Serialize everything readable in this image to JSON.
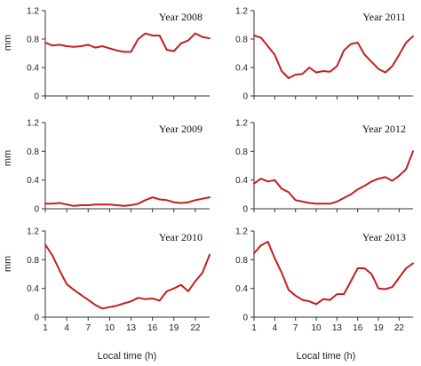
{
  "chart_data": {
    "type": "line",
    "ylabel": "mm",
    "xlabel": "Local time (h)",
    "x": [
      1,
      2,
      3,
      4,
      5,
      6,
      7,
      8,
      9,
      10,
      11,
      12,
      13,
      14,
      15,
      16,
      17,
      18,
      19,
      20,
      21,
      22,
      23,
      24
    ],
    "xticks": [
      1,
      4,
      7,
      10,
      13,
      16,
      19,
      22
    ],
    "ylim": [
      0,
      1.2
    ],
    "yticks": [
      "0",
      "0.4",
      "0.8",
      "1.2"
    ],
    "xlim": [
      1,
      24
    ],
    "line_color": "#c41e1e",
    "panels": [
      {
        "title": "Year 2008",
        "values": [
          0.75,
          0.71,
          0.72,
          0.7,
          0.69,
          0.7,
          0.72,
          0.68,
          0.7,
          0.67,
          0.64,
          0.62,
          0.62,
          0.8,
          0.88,
          0.85,
          0.85,
          0.65,
          0.63,
          0.74,
          0.78,
          0.88,
          0.83,
          0.81
        ]
      },
      {
        "title": "Year 2011",
        "values": [
          0.85,
          0.82,
          0.7,
          0.58,
          0.35,
          0.25,
          0.3,
          0.31,
          0.4,
          0.33,
          0.35,
          0.34,
          0.42,
          0.64,
          0.73,
          0.75,
          0.58,
          0.48,
          0.38,
          0.33,
          0.42,
          0.58,
          0.75,
          0.84
        ]
      },
      {
        "title": "Year 2009",
        "values": [
          0.07,
          0.07,
          0.08,
          0.06,
          0.04,
          0.05,
          0.05,
          0.06,
          0.06,
          0.06,
          0.05,
          0.04,
          0.05,
          0.07,
          0.12,
          0.16,
          0.13,
          0.12,
          0.09,
          0.08,
          0.09,
          0.12,
          0.14,
          0.16
        ]
      },
      {
        "title": "Year 2012",
        "values": [
          0.35,
          0.42,
          0.38,
          0.4,
          0.28,
          0.23,
          0.12,
          0.1,
          0.08,
          0.07,
          0.07,
          0.07,
          0.1,
          0.15,
          0.2,
          0.27,
          0.32,
          0.38,
          0.42,
          0.44,
          0.39,
          0.46,
          0.55,
          0.8
        ]
      },
      {
        "title": "Year 2010",
        "values": [
          1.01,
          0.86,
          0.65,
          0.46,
          0.38,
          0.31,
          0.24,
          0.17,
          0.12,
          0.14,
          0.16,
          0.19,
          0.22,
          0.27,
          0.25,
          0.26,
          0.23,
          0.36,
          0.4,
          0.45,
          0.36,
          0.5,
          0.62,
          0.87
        ]
      },
      {
        "title": "Year 2013",
        "values": [
          0.89,
          1.0,
          1.05,
          0.82,
          0.62,
          0.38,
          0.3,
          0.24,
          0.22,
          0.18,
          0.25,
          0.24,
          0.32,
          0.32,
          0.5,
          0.68,
          0.68,
          0.6,
          0.4,
          0.39,
          0.42,
          0.55,
          0.68,
          0.75
        ]
      }
    ]
  }
}
